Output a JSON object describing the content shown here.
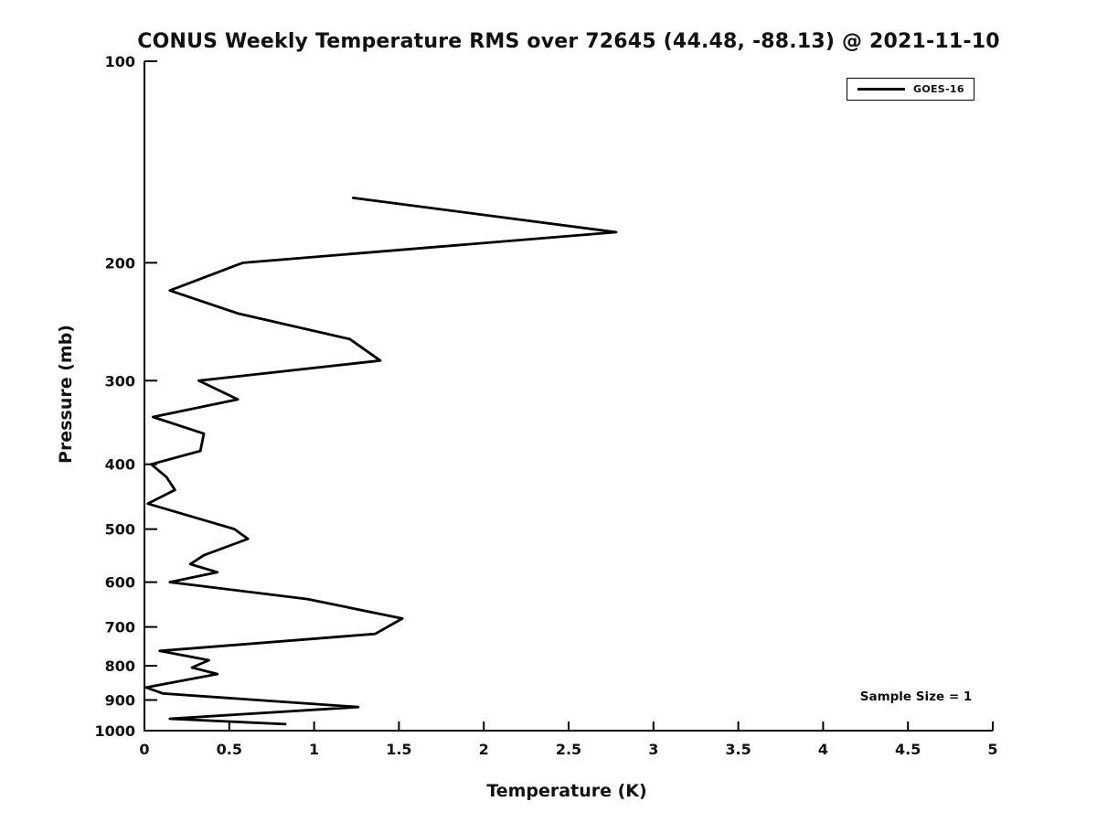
{
  "figure": {
    "title": "CONUS Weekly Temperature RMS over 72645 (44.48, -88.13) @ 2021-11-10",
    "xlabel": "Temperature (K)",
    "ylabel": "Pressure (mb)",
    "annotation": "Sample Size = 1",
    "legend": {
      "label": "GOES-16"
    }
  },
  "chart_data": {
    "type": "line",
    "title": "CONUS Weekly Temperature RMS over 72645 (44.48, -88.13) @ 2021-11-10",
    "xlabel": "Temperature (K)",
    "ylabel": "Pressure (mb)",
    "xlim": [
      0,
      5
    ],
    "ylim": [
      100,
      1000
    ],
    "xscale": "linear",
    "yscale": "log",
    "y_inverted": true,
    "grid": false,
    "box": false,
    "tick_direction": "in",
    "xticks": [
      0,
      0.5,
      1,
      1.5,
      2,
      2.5,
      3,
      3.5,
      4,
      4.5,
      5
    ],
    "yticks": [
      100,
      200,
      300,
      400,
      500,
      600,
      700,
      800,
      900,
      1000
    ],
    "legend_position": "top-right",
    "line_color": "#000000",
    "annotations": [
      {
        "text": "Sample Size = 1",
        "location": "lower-right"
      }
    ],
    "series": [
      {
        "name": "GOES-16",
        "x_units": "K",
        "y_units": "mb",
        "points": [
          [
            1.23,
            160
          ],
          [
            2.78,
            180
          ],
          [
            0.58,
            200
          ],
          [
            0.15,
            220
          ],
          [
            0.55,
            238
          ],
          [
            1.21,
            260
          ],
          [
            1.39,
            280
          ],
          [
            0.32,
            300
          ],
          [
            0.55,
            320
          ],
          [
            0.05,
            340
          ],
          [
            0.35,
            360
          ],
          [
            0.33,
            382
          ],
          [
            0.04,
            400
          ],
          [
            0.13,
            418
          ],
          [
            0.18,
            437
          ],
          [
            0.02,
            458
          ],
          [
            0.53,
            500
          ],
          [
            0.61,
            517
          ],
          [
            0.35,
            547
          ],
          [
            0.27,
            564
          ],
          [
            0.43,
            580
          ],
          [
            0.15,
            600
          ],
          [
            0.96,
            636
          ],
          [
            1.52,
            680
          ],
          [
            1.36,
            717
          ],
          [
            0.09,
            760
          ],
          [
            0.38,
            785
          ],
          [
            0.28,
            805
          ],
          [
            0.43,
            823
          ],
          [
            0.01,
            862
          ],
          [
            0.11,
            880
          ],
          [
            1.26,
            922
          ],
          [
            0.15,
            960
          ],
          [
            0.83,
            978
          ]
        ]
      }
    ]
  }
}
